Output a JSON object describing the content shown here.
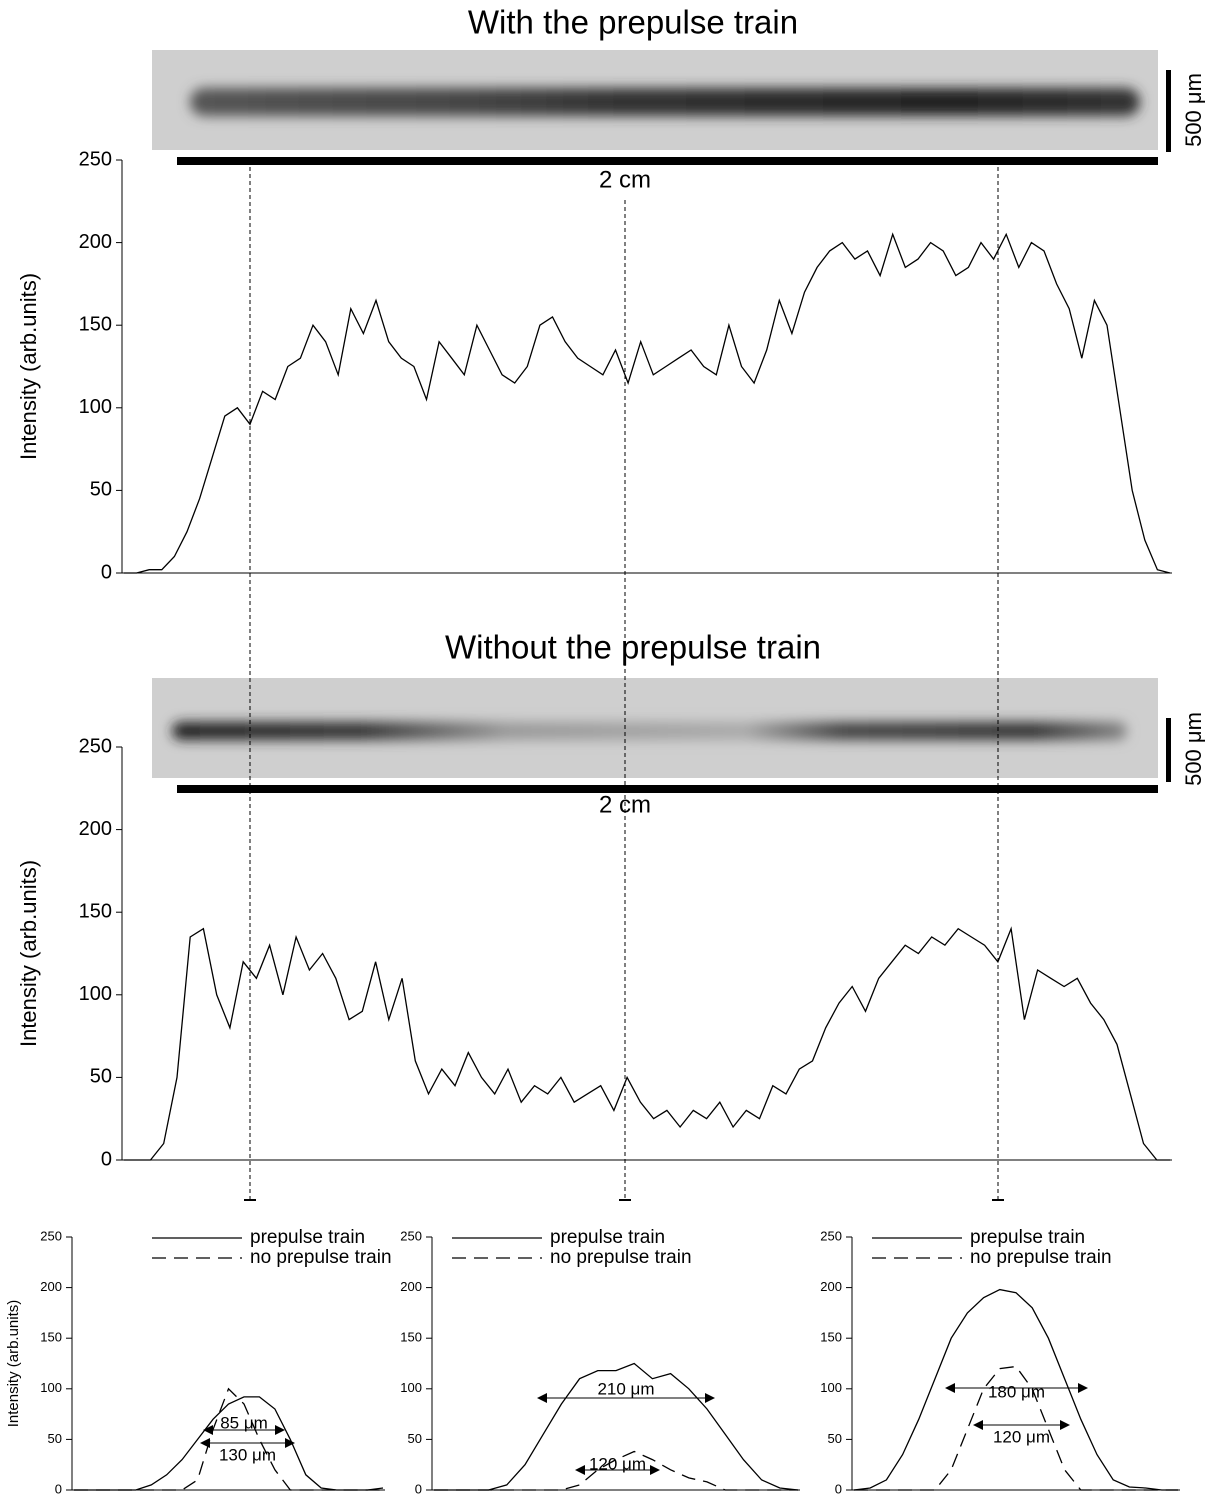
{
  "chart_data": [
    {
      "type": "line",
      "title": "With the prepulse train",
      "y_label": "Intensity (arb.units)",
      "scale_labels": [
        "500 μm",
        "2 cm"
      ],
      "ylim": [
        0,
        250
      ],
      "yticks": [
        0,
        50,
        100,
        150,
        200,
        250
      ],
      "series": [
        {
          "color": "#000000",
          "linestyle": "solid",
          "values": [
            0,
            0,
            2,
            2,
            10,
            25,
            45,
            70,
            95,
            100,
            90,
            110,
            105,
            125,
            130,
            150,
            140,
            120,
            160,
            145,
            165,
            140,
            130,
            125,
            105,
            140,
            130,
            120,
            150,
            135,
            120,
            115,
            125,
            150,
            155,
            140,
            130,
            125,
            120,
            135,
            115,
            140,
            120,
            125,
            130,
            135,
            125,
            120,
            150,
            125,
            115,
            135,
            165,
            145,
            170,
            185,
            195,
            200,
            190,
            195,
            180,
            205,
            185,
            190,
            200,
            195,
            180,
            185,
            200,
            190,
            205,
            185,
            200,
            195,
            175,
            160,
            130,
            165,
            150,
            100,
            50,
            20,
            2,
            0
          ]
        }
      ]
    },
    {
      "type": "line",
      "title": "Without the prepulse train",
      "y_label": "Intensity (arb.units)",
      "scale_labels": [
        "500 μm",
        "2 cm"
      ],
      "ylim": [
        0,
        250
      ],
      "yticks": [
        0,
        50,
        100,
        150,
        200,
        250
      ],
      "series": [
        {
          "color": "#000000",
          "linestyle": "solid",
          "values": [
            0,
            0,
            0,
            10,
            50,
            135,
            140,
            100,
            80,
            120,
            110,
            130,
            100,
            135,
            115,
            125,
            110,
            85,
            90,
            120,
            85,
            110,
            60,
            40,
            55,
            45,
            65,
            50,
            40,
            55,
            35,
            45,
            40,
            50,
            35,
            40,
            45,
            30,
            50,
            35,
            25,
            30,
            20,
            30,
            25,
            35,
            20,
            30,
            25,
            45,
            40,
            55,
            60,
            80,
            95,
            105,
            90,
            110,
            120,
            130,
            125,
            135,
            130,
            140,
            135,
            130,
            120,
            140,
            85,
            115,
            110,
            105,
            110,
            95,
            85,
            70,
            40,
            10,
            0,
            0
          ]
        }
      ]
    },
    {
      "type": "line",
      "y_label": "Intensity (arb.units)",
      "ylim": [
        0,
        250
      ],
      "yticks": [
        0,
        50,
        100,
        150,
        200,
        250
      ],
      "series": [
        {
          "name": "prepulse train",
          "color": "#000000",
          "linestyle": "solid",
          "values": [
            0,
            0,
            0,
            0,
            0,
            5,
            15,
            30,
            50,
            70,
            85,
            92,
            92,
            80,
            50,
            15,
            2,
            0,
            0,
            0,
            2
          ]
        },
        {
          "name": "no prepulse train",
          "color": "#000000",
          "linestyle": "dashed",
          "values": [
            0,
            0,
            0,
            0,
            0,
            0,
            0,
            0,
            10,
            60,
            100,
            85,
            50,
            20,
            0,
            0,
            0,
            0,
            0,
            0,
            0
          ]
        }
      ],
      "annotations": [
        "85 μm",
        "130 μm"
      ]
    },
    {
      "type": "line",
      "ylim": [
        0,
        250
      ],
      "yticks": [
        0,
        50,
        100,
        150,
        200,
        250
      ],
      "series": [
        {
          "name": "prepulse train",
          "color": "#000000",
          "linestyle": "solid",
          "values": [
            0,
            0,
            0,
            0,
            5,
            25,
            55,
            85,
            110,
            118,
            118,
            125,
            110,
            115,
            100,
            80,
            55,
            30,
            10,
            2,
            0
          ]
        },
        {
          "name": "no prepulse train",
          "color": "#000000",
          "linestyle": "dashed",
          "values": [
            0,
            0,
            0,
            0,
            0,
            0,
            0,
            0,
            5,
            20,
            30,
            38,
            30,
            20,
            12,
            8,
            0,
            0,
            0,
            0,
            0
          ]
        }
      ],
      "annotations": [
        "210 μm",
        "120 μm"
      ]
    },
    {
      "type": "line",
      "ylim": [
        0,
        250
      ],
      "yticks": [
        0,
        50,
        100,
        150,
        200,
        250
      ],
      "series": [
        {
          "name": "prepulse train",
          "color": "#000000",
          "linestyle": "solid",
          "values": [
            0,
            2,
            10,
            35,
            70,
            110,
            150,
            175,
            190,
            198,
            195,
            180,
            150,
            110,
            70,
            35,
            10,
            3,
            2,
            0,
            0
          ]
        },
        {
          "name": "no prepulse train",
          "color": "#000000",
          "linestyle": "dashed",
          "values": [
            0,
            0,
            0,
            0,
            0,
            0,
            20,
            60,
            100,
            120,
            122,
            100,
            60,
            20,
            0,
            0,
            0,
            0,
            0,
            0,
            0
          ]
        }
      ],
      "annotations": [
        "180 μm",
        "120 μm"
      ]
    }
  ]
}
